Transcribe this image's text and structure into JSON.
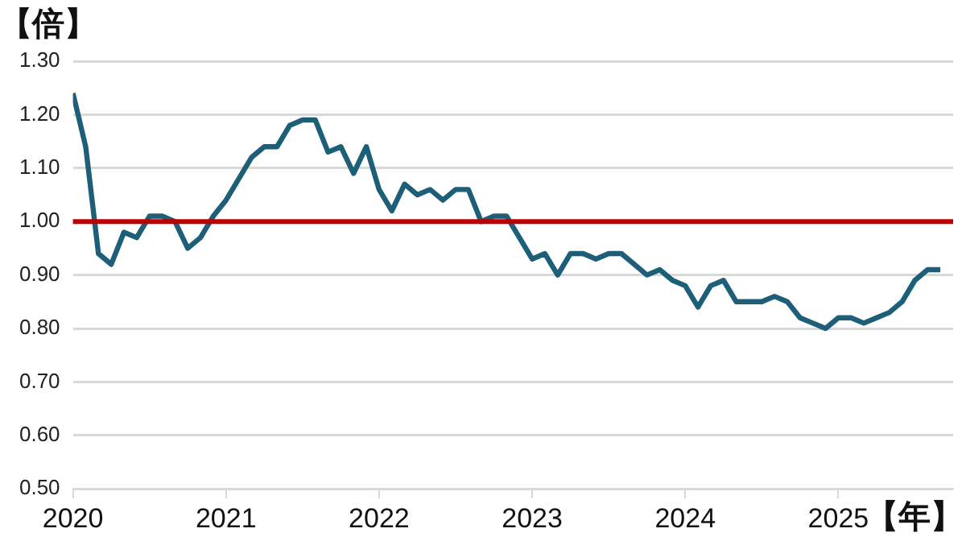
{
  "chart_data": {
    "type": "line",
    "ylabel": "【倍】",
    "xlabel": "【年】",
    "x": [
      "2020-01",
      "2020-02",
      "2020-03",
      "2020-04",
      "2020-05",
      "2020-06",
      "2020-07",
      "2020-08",
      "2020-09",
      "2020-10",
      "2020-11",
      "2020-12",
      "2021-01",
      "2021-02",
      "2021-03",
      "2021-04",
      "2021-05",
      "2021-06",
      "2021-07",
      "2021-08",
      "2021-09",
      "2021-10",
      "2021-11",
      "2021-12",
      "2022-01",
      "2022-02",
      "2022-03",
      "2022-04",
      "2022-05",
      "2022-06",
      "2022-07",
      "2022-08",
      "2022-09",
      "2022-10",
      "2022-11",
      "2022-12",
      "2023-01",
      "2023-02",
      "2023-03",
      "2023-04",
      "2023-05",
      "2023-06",
      "2023-07",
      "2023-08",
      "2023-09",
      "2023-10",
      "2023-11",
      "2023-12",
      "2024-01",
      "2024-02",
      "2024-03",
      "2024-04",
      "2024-05",
      "2024-06",
      "2024-07",
      "2024-08",
      "2024-09",
      "2024-10",
      "2024-11",
      "2024-12",
      "2025-01",
      "2025-02",
      "2025-03",
      "2025-04",
      "2025-05",
      "2025-06",
      "2025-07",
      "2025-08",
      "2025-09"
    ],
    "series": [
      {
        "color": "#1d5f78",
        "values": [
          1.24,
          1.14,
          0.94,
          0.92,
          0.98,
          0.97,
          1.01,
          1.01,
          1.0,
          0.95,
          0.97,
          1.01,
          1.04,
          1.08,
          1.12,
          1.14,
          1.14,
          1.18,
          1.19,
          1.19,
          1.13,
          1.14,
          1.09,
          1.14,
          1.06,
          1.02,
          1.07,
          1.05,
          1.06,
          1.04,
          1.06,
          1.06,
          1.0,
          1.01,
          1.01,
          0.97,
          0.93,
          0.94,
          0.9,
          0.94,
          0.94,
          0.93,
          0.94,
          0.94,
          0.92,
          0.9,
          0.91,
          0.89,
          0.88,
          0.84,
          0.88,
          0.89,
          0.85,
          0.85,
          0.85,
          0.86,
          0.85,
          0.82,
          0.81,
          0.8,
          0.82,
          0.82,
          0.81,
          0.82,
          0.83,
          0.85,
          0.89,
          0.91,
          0.91
        ]
      }
    ],
    "xlim": [
      "2020-01",
      "2025-10"
    ],
    "xticks": [
      {
        "value": "2020",
        "label": "2020"
      },
      {
        "value": "2021",
        "label": "2021"
      },
      {
        "value": "2022",
        "label": "2022"
      },
      {
        "value": "2023",
        "label": "2023"
      },
      {
        "value": "2024",
        "label": "2024"
      },
      {
        "value": "2025",
        "label": "2025"
      }
    ],
    "ylim": [
      0.5,
      1.3
    ],
    "yticks": [
      {
        "value": 0.5,
        "label": "0.50"
      },
      {
        "value": 0.6,
        "label": "0.60"
      },
      {
        "value": 0.7,
        "label": "0.70"
      },
      {
        "value": 0.8,
        "label": "0.80"
      },
      {
        "value": 0.9,
        "label": "0.90"
      },
      {
        "value": 1.0,
        "label": "1.00"
      },
      {
        "value": 1.1,
        "label": "1.10"
      },
      {
        "value": 1.2,
        "label": "1.20"
      },
      {
        "value": 1.3,
        "label": "1.30"
      }
    ],
    "ref_lines": [
      {
        "axis": "y",
        "value": 1.0,
        "color": "#c00000"
      }
    ],
    "grid": "y",
    "legend": false,
    "marker": "none",
    "line_style": "solid"
  }
}
